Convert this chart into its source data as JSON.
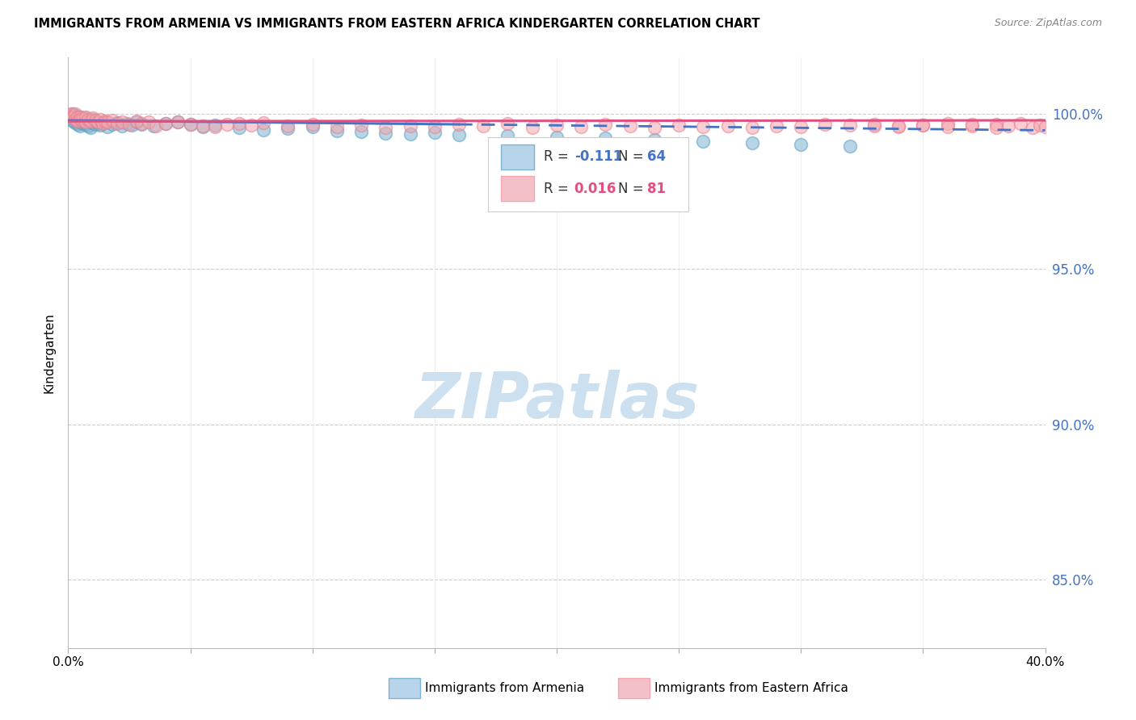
{
  "title": "IMMIGRANTS FROM ARMENIA VS IMMIGRANTS FROM EASTERN AFRICA KINDERGARTEN CORRELATION CHART",
  "source": "Source: ZipAtlas.com",
  "ylabel": "Kindergarten",
  "x_min": 0.0,
  "x_max": 0.4,
  "y_min": 0.828,
  "y_max": 1.018,
  "y_ticks": [
    0.85,
    0.9,
    0.95,
    1.0
  ],
  "y_tick_labels": [
    "85.0%",
    "90.0%",
    "95.0%",
    "100.0%"
  ],
  "legend_r1_prefix": "R = ",
  "legend_r1_val": "-0.111",
  "legend_n1_prefix": "N = ",
  "legend_n1_val": "64",
  "legend_r2_prefix": "R = ",
  "legend_r2_val": "0.016",
  "legend_n2_prefix": "N = ",
  "legend_n2_val": "81",
  "series1_color": "#7fb3d3",
  "series2_color": "#f4a7b0",
  "series1_edge": "#5a9fc0",
  "series2_edge": "#e8808e",
  "trend1_color": "#4472c4",
  "trend2_color": "#e05080",
  "watermark": "ZIPatlas",
  "watermark_color": "#cce0f0",
  "legend_label1": "Immigrants from Armenia",
  "legend_label2": "Immigrants from Eastern Africa",
  "armenia_x": [
    0.001,
    0.001,
    0.002,
    0.002,
    0.002,
    0.003,
    0.003,
    0.003,
    0.004,
    0.004,
    0.004,
    0.005,
    0.005,
    0.005,
    0.005,
    0.006,
    0.006,
    0.006,
    0.007,
    0.007,
    0.007,
    0.008,
    0.008,
    0.009,
    0.009,
    0.01,
    0.01,
    0.011,
    0.012,
    0.013,
    0.014,
    0.015,
    0.016,
    0.018,
    0.02,
    0.022,
    0.024,
    0.026,
    0.028,
    0.03,
    0.035,
    0.04,
    0.045,
    0.05,
    0.055,
    0.06,
    0.07,
    0.08,
    0.09,
    0.1,
    0.11,
    0.12,
    0.13,
    0.14,
    0.15,
    0.16,
    0.18,
    0.2,
    0.22,
    0.24,
    0.26,
    0.28,
    0.3,
    0.32
  ],
  "armenia_y": [
    0.9995,
    0.9985,
    0.999,
    0.9975,
    1.0,
    0.998,
    0.997,
    0.9995,
    0.9985,
    0.9975,
    0.9965,
    0.998,
    0.9972,
    0.999,
    0.996,
    0.9978,
    0.9968,
    0.9985,
    0.9975,
    0.9965,
    0.9985,
    0.9972,
    0.996,
    0.9975,
    0.9955,
    0.997,
    0.998,
    0.9965,
    0.997,
    0.9962,
    0.9968,
    0.9972,
    0.9958,
    0.9965,
    0.997,
    0.996,
    0.9968,
    0.9962,
    0.9972,
    0.9965,
    0.996,
    0.9968,
    0.9972,
    0.9965,
    0.9958,
    0.9962,
    0.9955,
    0.9948,
    0.9952,
    0.9958,
    0.9945,
    0.9942,
    0.9938,
    0.9935,
    0.994,
    0.9932,
    0.9928,
    0.9925,
    0.992,
    0.9915,
    0.991,
    0.9905,
    0.99,
    0.9895
  ],
  "eastern_x": [
    0.001,
    0.001,
    0.002,
    0.002,
    0.003,
    0.003,
    0.004,
    0.004,
    0.005,
    0.005,
    0.006,
    0.006,
    0.007,
    0.007,
    0.008,
    0.009,
    0.01,
    0.011,
    0.012,
    0.013,
    0.014,
    0.015,
    0.016,
    0.018,
    0.02,
    0.022,
    0.025,
    0.028,
    0.03,
    0.033,
    0.036,
    0.04,
    0.045,
    0.05,
    0.055,
    0.06,
    0.065,
    0.07,
    0.075,
    0.08,
    0.09,
    0.1,
    0.11,
    0.12,
    0.13,
    0.14,
    0.15,
    0.16,
    0.17,
    0.18,
    0.19,
    0.2,
    0.21,
    0.22,
    0.23,
    0.24,
    0.25,
    0.26,
    0.27,
    0.28,
    0.29,
    0.3,
    0.31,
    0.32,
    0.33,
    0.34,
    0.35,
    0.36,
    0.37,
    0.38,
    0.385,
    0.39,
    0.395,
    0.398,
    0.4,
    0.38,
    0.37,
    0.36,
    0.35,
    0.34,
    0.33
  ],
  "eastern_y": [
    0.9995,
    1.0,
    0.9992,
    0.9985,
    0.9998,
    0.998,
    0.999,
    0.9975,
    0.9988,
    0.9982,
    0.9978,
    0.9985,
    0.9972,
    0.999,
    0.998,
    0.9975,
    0.9985,
    0.9978,
    0.9972,
    0.998,
    0.9968,
    0.9975,
    0.9972,
    0.9978,
    0.9968,
    0.9972,
    0.9965,
    0.9975,
    0.9968,
    0.9972,
    0.996,
    0.9968,
    0.9972,
    0.9965,
    0.996,
    0.9958,
    0.9965,
    0.9968,
    0.9962,
    0.997,
    0.996,
    0.9965,
    0.9958,
    0.9962,
    0.9955,
    0.996,
    0.9958,
    0.9965,
    0.996,
    0.9968,
    0.9955,
    0.9962,
    0.9958,
    0.9965,
    0.996,
    0.9955,
    0.9962,
    0.9958,
    0.996,
    0.9955,
    0.996,
    0.9958,
    0.9965,
    0.9962,
    0.996,
    0.9958,
    0.9962,
    0.9968,
    0.996,
    0.9965,
    0.996,
    0.9968,
    0.9955,
    0.9962,
    0.9958,
    0.9955,
    0.9965,
    0.9958,
    0.9962,
    0.996,
    0.9965
  ]
}
